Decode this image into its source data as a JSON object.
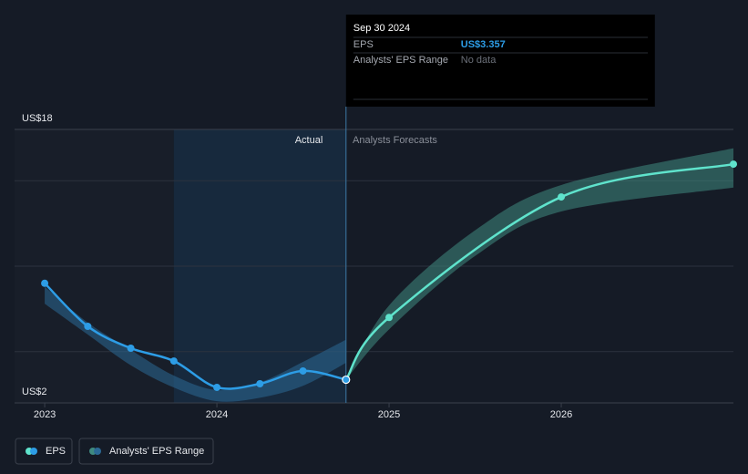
{
  "chart_data": {
    "type": "line",
    "xlim": [
      2022.825,
      2027
    ],
    "xticks": [
      2023,
      2024,
      2025,
      2026
    ],
    "ylim": [
      2,
      18
    ],
    "yticks": [
      {
        "value": 2,
        "label": "US$2"
      },
      {
        "value": 18,
        "label": "US$18"
      }
    ],
    "gridlines": [
      5,
      10,
      15
    ],
    "divider_x": 2024.75,
    "actual_label": "Actual",
    "forecast_label": "Analysts Forecasts",
    "series": [
      {
        "name": "EPS",
        "color": "#2d9de6",
        "forecast_color": "#5fe3cc",
        "x": [
          2023.0,
          2023.25,
          2023.5,
          2023.75,
          2024.0,
          2024.25,
          2024.5,
          2024.75,
          2025.0,
          2026.0,
          2027.0
        ],
        "values": [
          9.0,
          6.48,
          5.2,
          4.45,
          2.91,
          3.12,
          3.87,
          3.357,
          7.0,
          14.05,
          15.97
        ]
      }
    ],
    "range": {
      "name": "Analysts' EPS Range",
      "color": "#2b6a96",
      "forecast_color": "#3f8a80",
      "x": [
        2023.0,
        2023.25,
        2023.5,
        2023.75,
        2024.0,
        2024.25,
        2024.5,
        2024.75,
        2025.0,
        2025.5,
        2026.0,
        2027.0
      ],
      "low": [
        7.8,
        6.0,
        4.2,
        2.9,
        2.1,
        2.3,
        3.0,
        4.35,
        6.3,
        10.6,
        13.2,
        14.6
      ],
      "high": [
        8.8,
        6.7,
        5.1,
        3.6,
        2.75,
        3.2,
        4.4,
        5.7,
        7.7,
        12.1,
        14.75,
        16.9
      ]
    },
    "tooltip": {
      "date": "Sep 30 2024",
      "rows": [
        {
          "label": "EPS",
          "value": "US$3.357"
        },
        {
          "label": "Analysts' EPS Range",
          "value": "No data"
        }
      ]
    }
  }
}
